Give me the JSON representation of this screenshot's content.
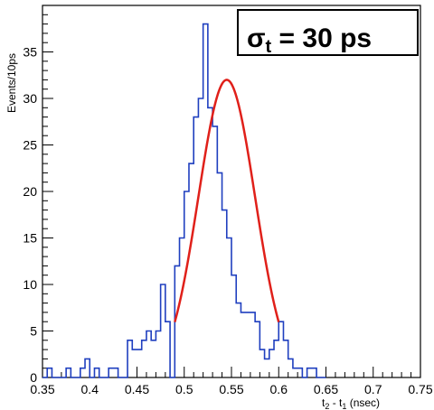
{
  "chart_data": {
    "type": "histogram",
    "xlabel": "t",
    "xlabel_sub1": "2",
    "xlabel_mid": " - t",
    "xlabel_sub2": "1",
    "xlabel_unit": " (nsec)",
    "ylabel": "Events/10ps",
    "xlim": [
      0.35,
      0.75
    ],
    "ylim": [
      0,
      40
    ],
    "x_ticks": [
      "0.35",
      "0.4",
      "0.45",
      "0.5",
      "0.55",
      "0.6",
      "0.65",
      "0.7",
      "0.75"
    ],
    "y_ticks": [
      "0",
      "5",
      "10",
      "15",
      "20",
      "25",
      "30",
      "35"
    ],
    "bin_width": 0.005,
    "bin_edges_start": 0.35,
    "counts": [
      0,
      1,
      0,
      0,
      0,
      1,
      0,
      0,
      1,
      2,
      0,
      1,
      0,
      0,
      1,
      1,
      0,
      0,
      4,
      3,
      3,
      4,
      5,
      4,
      5,
      10,
      6,
      0,
      12,
      15,
      20,
      23,
      28,
      30,
      38,
      29,
      27,
      22,
      18,
      15,
      11,
      8,
      7,
      7,
      7,
      6,
      3,
      2,
      3,
      4,
      6,
      4,
      2,
      1,
      1,
      0,
      1,
      1,
      0,
      0
    ],
    "series": [
      {
        "name": "",
        "color": "#1f3fbf",
        "style": "step-histogram"
      },
      {
        "name": "",
        "color": "#e0201a",
        "style": "gaussian-fit",
        "amplitude": 32,
        "mean": 0.545,
        "sigma": 0.03,
        "xrange": [
          0.49,
          0.6
        ]
      }
    ],
    "annotation": {
      "sigma_symbol": "σ",
      "sigma_sub": "t",
      "value_text": " = 30 ps"
    }
  }
}
